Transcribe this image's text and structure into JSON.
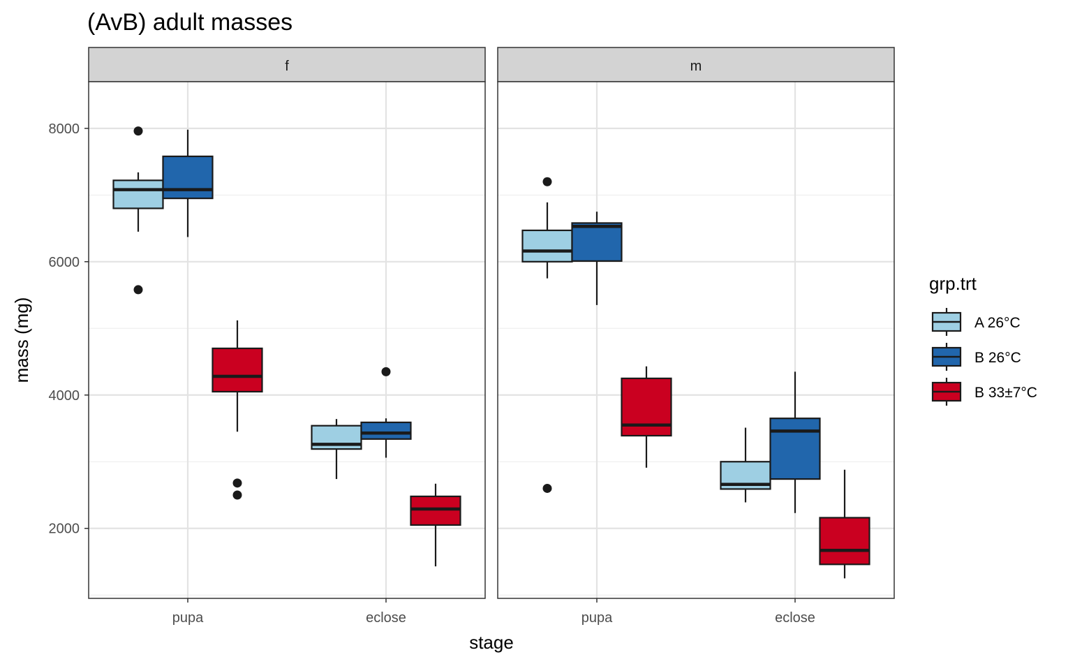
{
  "chart_data": {
    "type": "boxplot",
    "title": "(AvB) adult masses",
    "xlabel": "stage",
    "ylabel": "mass (mg)",
    "ylim": [
      950,
      8700
    ],
    "y_ticks": [
      2000,
      4000,
      6000,
      8000
    ],
    "y_tick_labels": [
      "2000",
      "4000",
      "6000",
      "8000"
    ],
    "categories": [
      "pupa",
      "eclose"
    ],
    "facets": [
      "f",
      "m"
    ],
    "grid": true,
    "legend": {
      "title": "grp.trt",
      "position": "right",
      "entries": [
        {
          "label": "A 26°C",
          "color": "#9ecfe3"
        },
        {
          "label": "B 26°C",
          "color": "#2166ac"
        },
        {
          "label": "B 33±7°C",
          "color": "#ca0020"
        }
      ]
    },
    "panels": [
      {
        "facet": "f",
        "boxes": [
          {
            "stage": "pupa",
            "group": "A 26°C",
            "whisker_low": 6450,
            "q1": 6800,
            "median": 7080,
            "q3": 7220,
            "whisker_high": 7340,
            "outliers": [
              7960,
              5580
            ]
          },
          {
            "stage": "pupa",
            "group": "B 26°C",
            "whisker_low": 6370,
            "q1": 6950,
            "median": 7080,
            "q3": 7580,
            "whisker_high": 7980,
            "outliers": []
          },
          {
            "stage": "pupa",
            "group": "B 33±7°C",
            "whisker_low": 3450,
            "q1": 4050,
            "median": 4280,
            "q3": 4700,
            "whisker_high": 5120,
            "outliers": [
              2680,
              2500
            ]
          },
          {
            "stage": "eclose",
            "group": "A 26°C",
            "whisker_low": 2740,
            "q1": 3190,
            "median": 3260,
            "q3": 3540,
            "whisker_high": 3640,
            "outliers": []
          },
          {
            "stage": "eclose",
            "group": "B 26°C",
            "whisker_low": 3060,
            "q1": 3340,
            "median": 3430,
            "q3": 3590,
            "whisker_high": 3650,
            "outliers": [
              4350
            ]
          },
          {
            "stage": "eclose",
            "group": "B 33±7°C",
            "whisker_low": 1430,
            "q1": 2050,
            "median": 2290,
            "q3": 2480,
            "whisker_high": 2670,
            "outliers": []
          }
        ]
      },
      {
        "facet": "m",
        "boxes": [
          {
            "stage": "pupa",
            "group": "A 26°C",
            "whisker_low": 5750,
            "q1": 6000,
            "median": 6160,
            "q3": 6470,
            "whisker_high": 6890,
            "outliers": [
              7200,
              2600
            ]
          },
          {
            "stage": "pupa",
            "group": "B 26°C",
            "whisker_low": 5350,
            "q1": 6010,
            "median": 6530,
            "q3": 6580,
            "whisker_high": 6750,
            "outliers": []
          },
          {
            "stage": "pupa",
            "group": "B 33±7°C",
            "whisker_low": 2910,
            "q1": 3390,
            "median": 3550,
            "q3": 4250,
            "whisker_high": 4430,
            "outliers": []
          },
          {
            "stage": "eclose",
            "group": "A 26°C",
            "whisker_low": 2390,
            "q1": 2590,
            "median": 2660,
            "q3": 3000,
            "whisker_high": 3510,
            "outliers": []
          },
          {
            "stage": "eclose",
            "group": "B 26°C",
            "whisker_low": 2230,
            "q1": 2740,
            "median": 3460,
            "q3": 3650,
            "whisker_high": 4350,
            "outliers": []
          },
          {
            "stage": "eclose",
            "group": "B 33±7°C",
            "whisker_low": 1250,
            "q1": 1460,
            "median": 1670,
            "q3": 2160,
            "whisker_high": 2880,
            "outliers": []
          }
        ]
      }
    ]
  }
}
